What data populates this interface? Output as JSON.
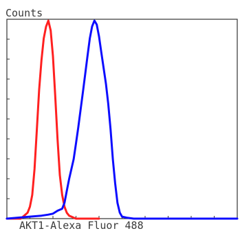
{
  "chart_data": {
    "type": "line",
    "title": "",
    "xlabel": "AKT1-Alexa Fluor 488",
    "ylabel": "Counts",
    "xlim": [
      0,
      100
    ],
    "ylim": [
      0,
      100
    ],
    "grid": false,
    "series": [
      {
        "color": "#ff2020",
        "x": [
          0,
          3,
          6,
          7.5,
          9,
          10,
          11,
          12,
          13,
          14,
          15,
          16,
          17,
          18,
          19,
          20,
          21,
          22,
          23,
          24,
          25,
          26,
          27,
          28,
          29,
          30,
          32,
          35,
          40
        ],
        "y": [
          0,
          0,
          0,
          1.5,
          3,
          6,
          12,
          25,
          45,
          65,
          80,
          91,
          97,
          100,
          95,
          82,
          62,
          40,
          22,
          12,
          6,
          3,
          1.5,
          1,
          0.5,
          0,
          0,
          0,
          0
        ]
      },
      {
        "color": "#0d0dff",
        "x": [
          0,
          10,
          15,
          18,
          20,
          22,
          24,
          25,
          26,
          27,
          28,
          29,
          30,
          31,
          32,
          33,
          34,
          35,
          36,
          37,
          38,
          39,
          40,
          41,
          42,
          43,
          44,
          45,
          46,
          47,
          48,
          49,
          50,
          52,
          55,
          60,
          70,
          80,
          90,
          100
        ],
        "y": [
          0,
          1,
          1.5,
          2,
          2.5,
          4,
          5,
          8,
          14,
          20,
          25,
          30,
          38,
          46,
          55,
          64,
          73,
          82,
          91,
          97,
          100,
          98,
          92,
          84,
          76,
          68,
          58,
          45,
          30,
          18,
          8,
          3,
          1,
          0.5,
          0,
          0,
          0,
          0,
          0,
          0
        ]
      }
    ]
  }
}
